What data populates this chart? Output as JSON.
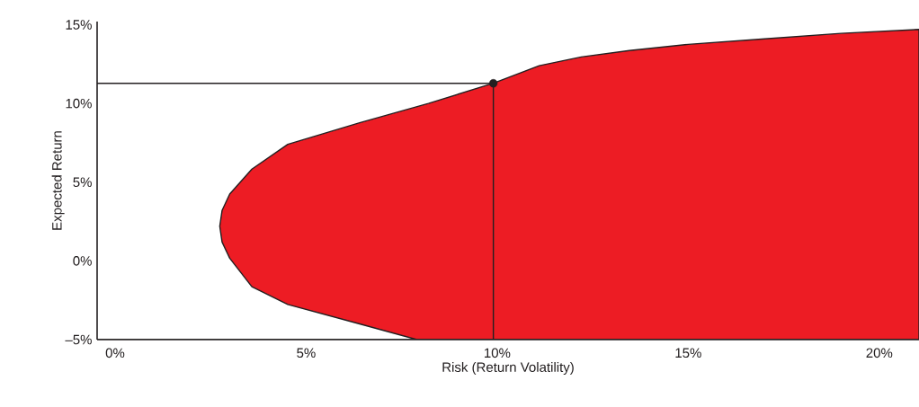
{
  "chart_data": {
    "type": "area",
    "xlabel": "Risk (Return Volatility)",
    "ylabel": "Expected Return",
    "xlim": [
      -0.47,
      21.04
    ],
    "ylim": [
      -5,
      15.2
    ],
    "xticks": [
      {
        "value": 0,
        "label": "0%"
      },
      {
        "value": 5,
        "label": "5%"
      },
      {
        "value": 10,
        "label": "10%"
      },
      {
        "value": 15,
        "label": "15%"
      },
      {
        "value": 20,
        "label": "20%"
      }
    ],
    "yticks": [
      {
        "value": -5,
        "label": "–5%"
      },
      {
        "value": 0,
        "label": "0%"
      },
      {
        "value": 5,
        "label": "5%"
      },
      {
        "value": 10,
        "label": "10%"
      },
      {
        "value": 15,
        "label": "15%"
      }
    ],
    "grid": false,
    "series": [
      {
        "color": "#ed1c24",
        "x": [
          7.9,
          6.4,
          4.52,
          3.58,
          3.0,
          2.8,
          2.74,
          2.8,
          3.0,
          3.58,
          4.52,
          6.4,
          8.2,
          9.9,
          11.1,
          12.2,
          13.46,
          15.0,
          17.0,
          19.0,
          21.04,
          21.04
        ],
        "values": [
          -5,
          -4.0,
          -2.77,
          -1.64,
          0.17,
          1.2,
          2.2,
          3.2,
          4.24,
          5.83,
          7.4,
          8.77,
          10.0,
          11.28,
          12.4,
          12.95,
          13.36,
          13.75,
          14.1,
          14.45,
          14.7,
          -5
        ]
      },
      {
        "type": "line",
        "color": "#231f20",
        "x": [
          -0.47,
          9.9,
          9.9
        ],
        "values": [
          11.28,
          11.28,
          -5
        ]
      },
      {
        "type": "scatter",
        "color": "#231f20",
        "marker": "circle",
        "x": [
          9.9
        ],
        "values": [
          11.28
        ]
      }
    ]
  }
}
